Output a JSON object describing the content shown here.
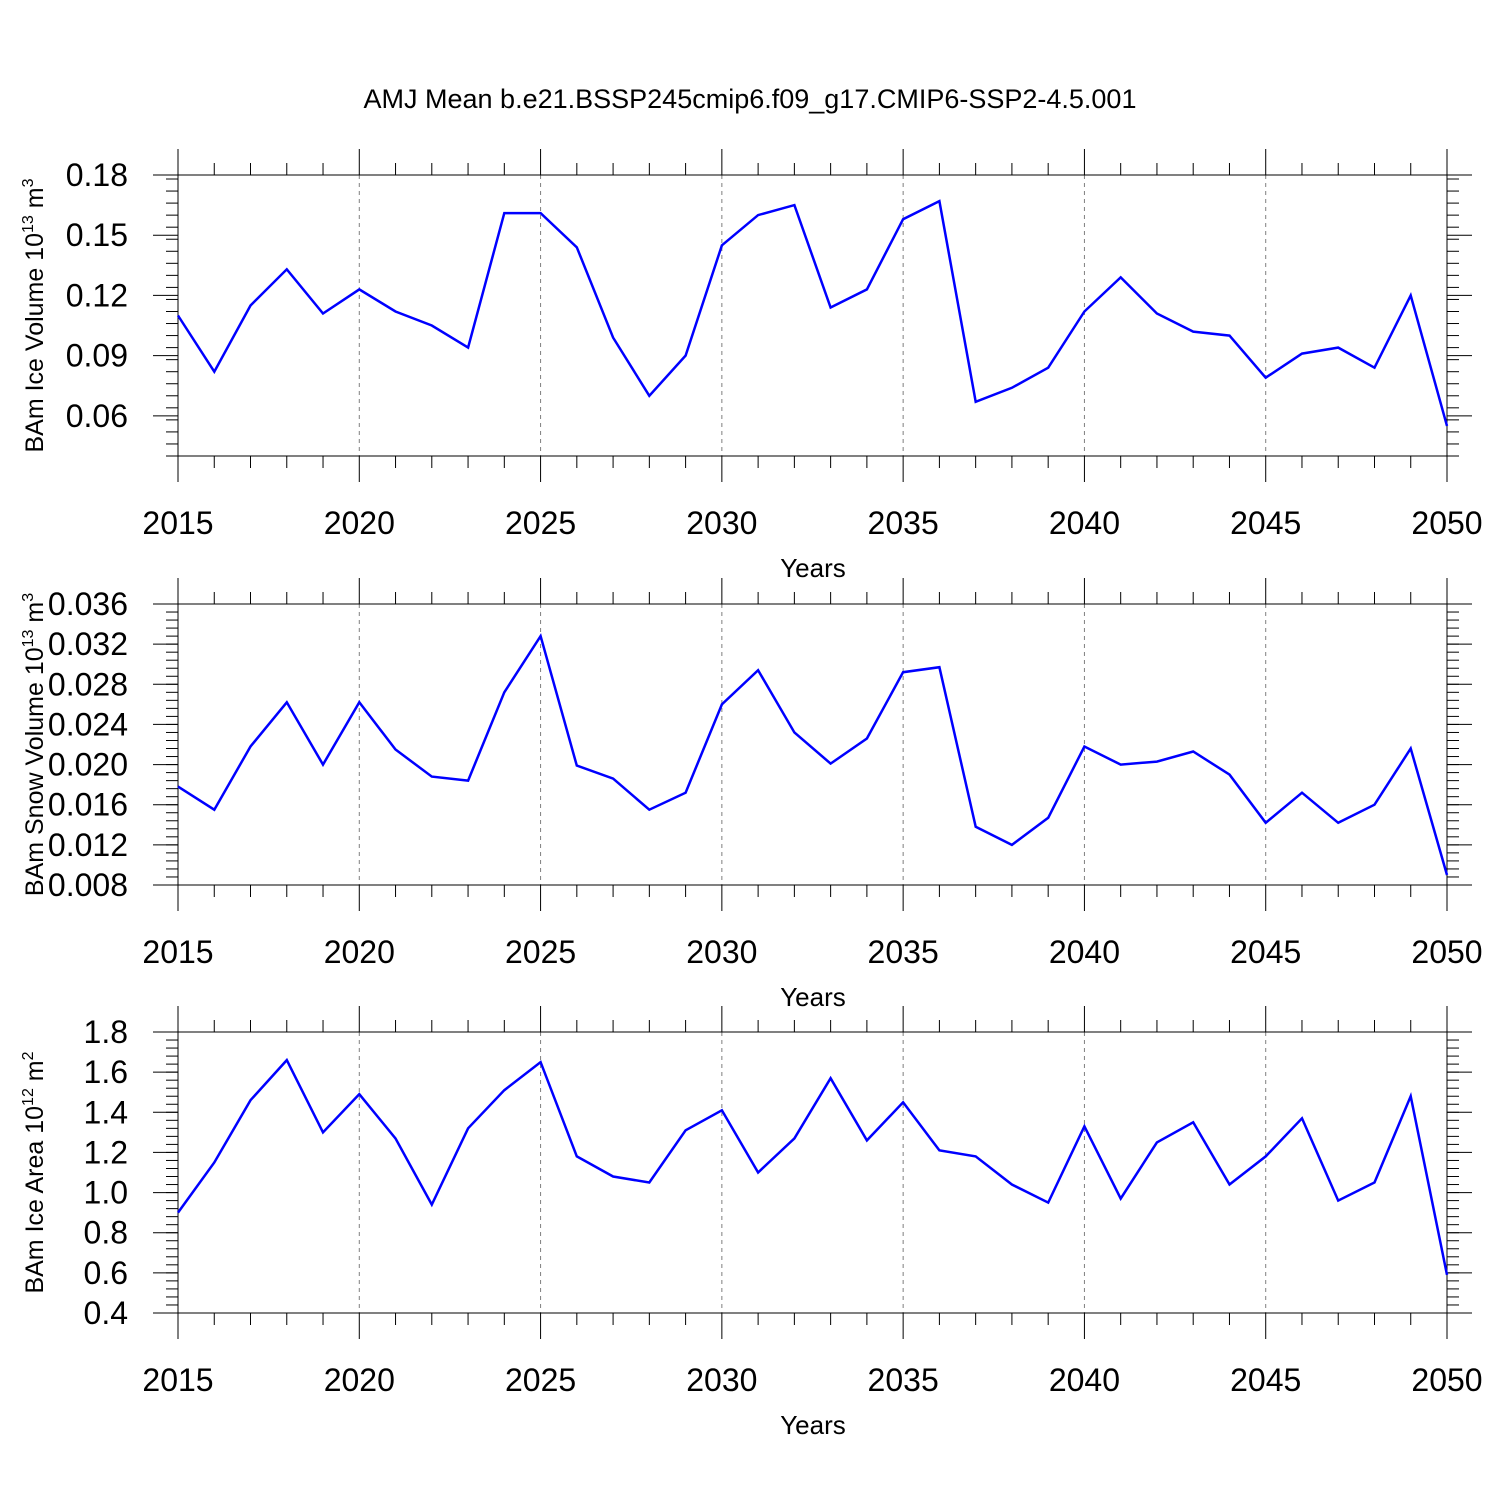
{
  "title": "AMJ Mean b.e21.BSSP245cmip6.f09_g17.CMIP6-SSP2-4.5.001",
  "colors": {
    "line": "#0000ff",
    "axis": "#000000",
    "grid": "#7f7f7f"
  },
  "chart_data": [
    {
      "type": "line",
      "title": "",
      "xlabel": "Years",
      "ylabel": "BAm Ice Volume 10",
      "ylabel_exp": "13",
      "ylabel_unit": "m",
      "ylabel_unit_exp": "3",
      "xlim": [
        2015,
        2050
      ],
      "ylim": [
        0.04,
        0.18
      ],
      "xticks": [
        "2015",
        "2020",
        "2025",
        "2030",
        "2035",
        "2040",
        "2045",
        "2050"
      ],
      "yticks": [
        "0.06",
        "0.09",
        "0.12",
        "0.15",
        "0.18"
      ],
      "x": [
        2015,
        2016,
        2017,
        2018,
        2019,
        2020,
        2021,
        2022,
        2023,
        2024,
        2025,
        2026,
        2027,
        2028,
        2029,
        2030,
        2031,
        2032,
        2033,
        2034,
        2035,
        2036,
        2037,
        2038,
        2039,
        2040,
        2041,
        2042,
        2043,
        2044,
        2045,
        2046,
        2047,
        2048,
        2049,
        2050
      ],
      "series": [
        {
          "values": [
            0.11,
            0.082,
            0.115,
            0.133,
            0.111,
            0.123,
            0.112,
            0.105,
            0.094,
            0.161,
            0.161,
            0.144,
            0.099,
            0.07,
            0.09,
            0.145,
            0.16,
            0.165,
            0.114,
            0.123,
            0.158,
            0.167,
            0.067,
            0.074,
            0.084,
            0.112,
            0.129,
            0.111,
            0.102,
            0.1,
            0.079,
            0.091,
            0.094,
            0.084,
            0.12,
            0.055
          ]
        }
      ],
      "grid": "x dashed at major ticks"
    },
    {
      "type": "line",
      "title": "",
      "xlabel": "Years",
      "ylabel": "BAm Snow Volume 10",
      "ylabel_exp": "13",
      "ylabel_unit": "m",
      "ylabel_unit_exp": "3",
      "xlim": [
        2015,
        2050
      ],
      "ylim": [
        0.008,
        0.036
      ],
      "xticks": [
        "2015",
        "2020",
        "2025",
        "2030",
        "2035",
        "2040",
        "2045",
        "2050"
      ],
      "yticks": [
        "0.008",
        "0.012",
        "0.016",
        "0.020",
        "0.024",
        "0.028",
        "0.032",
        "0.036"
      ],
      "x": [
        2015,
        2016,
        2017,
        2018,
        2019,
        2020,
        2021,
        2022,
        2023,
        2024,
        2025,
        2026,
        2027,
        2028,
        2029,
        2030,
        2031,
        2032,
        2033,
        2034,
        2035,
        2036,
        2037,
        2038,
        2039,
        2040,
        2041,
        2042,
        2043,
        2044,
        2045,
        2046,
        2047,
        2048,
        2049,
        2050
      ],
      "series": [
        {
          "values": [
            0.0178,
            0.0155,
            0.0218,
            0.0262,
            0.02,
            0.0262,
            0.0215,
            0.0188,
            0.0184,
            0.0272,
            0.0328,
            0.0199,
            0.0186,
            0.0155,
            0.0172,
            0.026,
            0.0294,
            0.0232,
            0.0201,
            0.0226,
            0.0292,
            0.0297,
            0.0138,
            0.012,
            0.0147,
            0.0218,
            0.02,
            0.0203,
            0.0213,
            0.019,
            0.0142,
            0.0172,
            0.0142,
            0.016,
            0.0216,
            0.009
          ]
        }
      ],
      "grid": "x dashed at major ticks"
    },
    {
      "type": "line",
      "title": "",
      "xlabel": "Years",
      "ylabel": "BAm Ice Area 10",
      "ylabel_exp": "12",
      "ylabel_unit": "m",
      "ylabel_unit_exp": "2",
      "xlim": [
        2015,
        2050
      ],
      "ylim": [
        0.4,
        1.8
      ],
      "xticks": [
        "2015",
        "2020",
        "2025",
        "2030",
        "2035",
        "2040",
        "2045",
        "2050"
      ],
      "yticks": [
        "0.4",
        "0.6",
        "0.8",
        "1.0",
        "1.2",
        "1.4",
        "1.6",
        "1.8"
      ],
      "x": [
        2015,
        2016,
        2017,
        2018,
        2019,
        2020,
        2021,
        2022,
        2023,
        2024,
        2025,
        2026,
        2027,
        2028,
        2029,
        2030,
        2031,
        2032,
        2033,
        2034,
        2035,
        2036,
        2037,
        2038,
        2039,
        2040,
        2041,
        2042,
        2043,
        2044,
        2045,
        2046,
        2047,
        2048,
        2049,
        2050
      ],
      "series": [
        {
          "values": [
            0.9,
            1.15,
            1.46,
            1.66,
            1.3,
            1.49,
            1.27,
            0.94,
            1.32,
            1.51,
            1.65,
            1.18,
            1.08,
            1.05,
            1.31,
            1.41,
            1.1,
            1.27,
            1.57,
            1.26,
            1.45,
            1.21,
            1.18,
            1.04,
            0.95,
            1.33,
            0.97,
            1.25,
            1.35,
            1.04,
            1.18,
            1.37,
            0.96,
            1.05,
            1.48,
            0.59
          ]
        }
      ],
      "grid": "x dashed at major ticks"
    }
  ]
}
